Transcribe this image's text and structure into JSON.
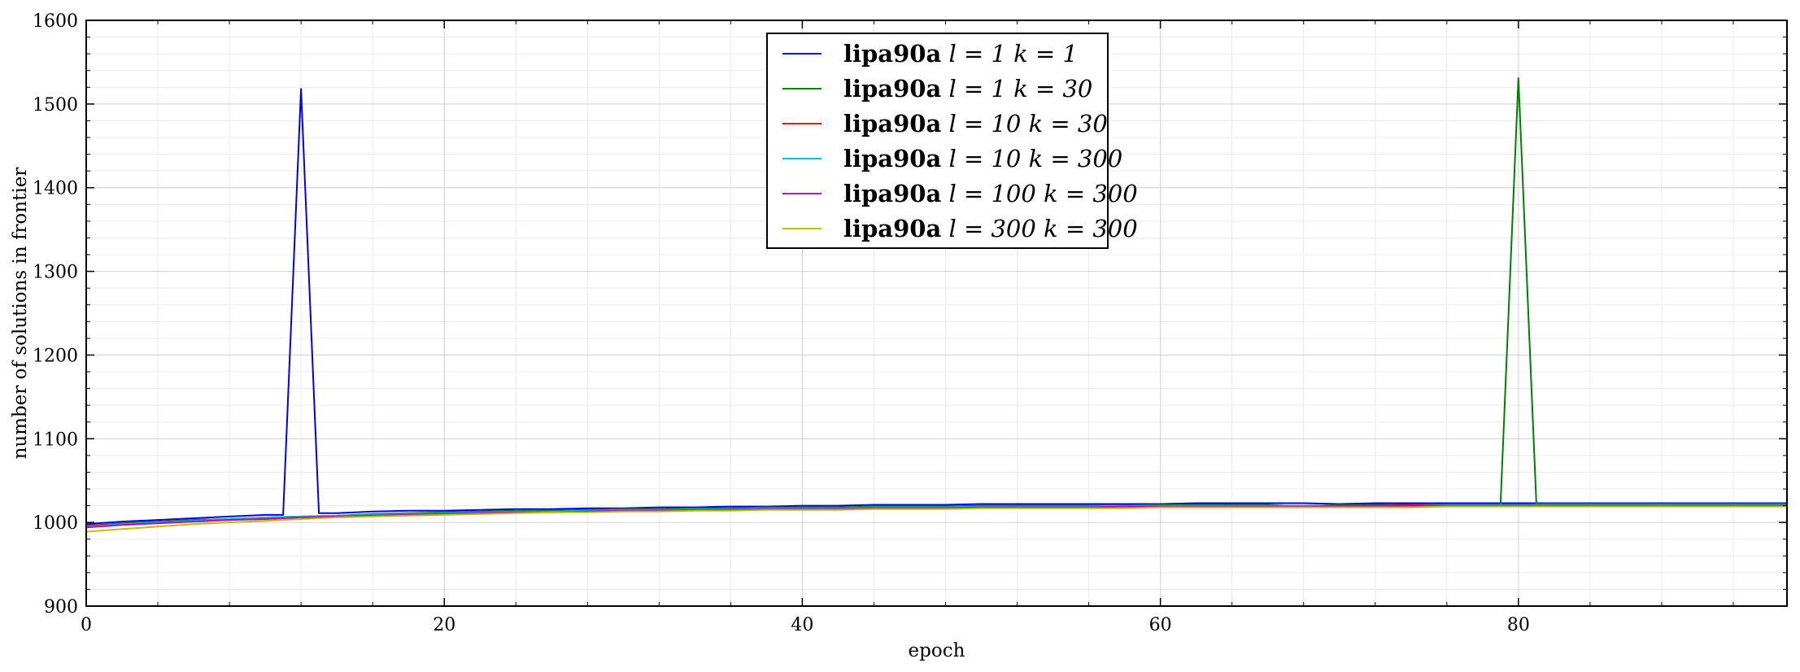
{
  "chart_data": {
    "type": "line",
    "title": "",
    "xlabel": "epoch",
    "ylabel": "number of solutions in frontier",
    "xlim": [
      0,
      95
    ],
    "ylim": [
      900,
      1600
    ],
    "xticks": [
      0,
      20,
      40,
      60,
      80
    ],
    "yticks": [
      900,
      1000,
      1100,
      1200,
      1300,
      1400,
      1500,
      1600
    ],
    "grid": true,
    "minor_grid": true,
    "legend_position": "top-center",
    "series": [
      {
        "name": "lipa90a l = 1 k = 1",
        "label_prefix": "lipa90a",
        "label_math": "l = 1 k = 1",
        "color": "#0000ee",
        "points": [
          [
            0,
            998
          ],
          [
            2,
            1001
          ],
          [
            4,
            1003
          ],
          [
            6,
            1005
          ],
          [
            8,
            1007
          ],
          [
            10,
            1009
          ],
          [
            11,
            1009
          ],
          [
            12,
            1518
          ],
          [
            13,
            1011
          ],
          [
            14,
            1011
          ],
          [
            16,
            1013
          ],
          [
            18,
            1014
          ],
          [
            20,
            1014
          ],
          [
            22,
            1015
          ],
          [
            24,
            1016
          ],
          [
            26,
            1016
          ],
          [
            28,
            1017
          ],
          [
            30,
            1017
          ],
          [
            32,
            1018
          ],
          [
            34,
            1018
          ],
          [
            36,
            1019
          ],
          [
            38,
            1019
          ],
          [
            40,
            1020
          ],
          [
            42,
            1020
          ],
          [
            44,
            1021
          ],
          [
            46,
            1021
          ],
          [
            48,
            1021
          ],
          [
            50,
            1022
          ],
          [
            52,
            1022
          ],
          [
            54,
            1022
          ],
          [
            56,
            1022
          ],
          [
            58,
            1022
          ],
          [
            60,
            1022
          ],
          [
            62,
            1023
          ],
          [
            64,
            1023
          ],
          [
            66,
            1023
          ],
          [
            68,
            1023
          ],
          [
            70,
            1022
          ],
          [
            72,
            1023
          ],
          [
            74,
            1023
          ],
          [
            76,
            1023
          ],
          [
            78,
            1023
          ],
          [
            80,
            1023
          ],
          [
            82,
            1023
          ],
          [
            84,
            1023
          ],
          [
            86,
            1023
          ],
          [
            88,
            1023
          ],
          [
            90,
            1023
          ],
          [
            92,
            1023
          ],
          [
            95,
            1023
          ]
        ]
      },
      {
        "name": "lipa90a l = 1 k = 30",
        "label_prefix": "lipa90a",
        "label_math": "l = 1 k = 30",
        "color": "#008000",
        "points": [
          [
            0,
            996
          ],
          [
            2,
            999
          ],
          [
            4,
            1001
          ],
          [
            6,
            1003
          ],
          [
            8,
            1004
          ],
          [
            10,
            1006
          ],
          [
            12,
            1007
          ],
          [
            14,
            1008
          ],
          [
            16,
            1010
          ],
          [
            18,
            1011
          ],
          [
            20,
            1012
          ],
          [
            22,
            1013
          ],
          [
            24,
            1014
          ],
          [
            26,
            1014
          ],
          [
            28,
            1015
          ],
          [
            30,
            1016
          ],
          [
            32,
            1016
          ],
          [
            34,
            1017
          ],
          [
            36,
            1017
          ],
          [
            38,
            1018
          ],
          [
            40,
            1018
          ],
          [
            42,
            1018
          ],
          [
            44,
            1019
          ],
          [
            46,
            1019
          ],
          [
            48,
            1019
          ],
          [
            50,
            1020
          ],
          [
            52,
            1020
          ],
          [
            54,
            1020
          ],
          [
            56,
            1020
          ],
          [
            58,
            1020
          ],
          [
            60,
            1021
          ],
          [
            62,
            1021
          ],
          [
            64,
            1021
          ],
          [
            66,
            1021
          ],
          [
            68,
            1019
          ],
          [
            70,
            1021
          ],
          [
            72,
            1021
          ],
          [
            74,
            1021
          ],
          [
            76,
            1021
          ],
          [
            78,
            1021
          ],
          [
            79,
            1021
          ],
          [
            80,
            1531
          ],
          [
            81,
            1022
          ],
          [
            82,
            1022
          ],
          [
            84,
            1022
          ],
          [
            86,
            1022
          ],
          [
            88,
            1022
          ],
          [
            90,
            1022
          ],
          [
            92,
            1022
          ],
          [
            95,
            1022
          ]
        ]
      },
      {
        "name": "lipa90a l = 10 k = 30",
        "label_prefix": "lipa90a",
        "label_math": "l = 10 k = 30",
        "color": "#ff0000",
        "points": [
          [
            0,
            996
          ],
          [
            2,
            998
          ],
          [
            4,
            1000
          ],
          [
            6,
            1002
          ],
          [
            8,
            1003
          ],
          [
            10,
            1005
          ],
          [
            12,
            1006
          ],
          [
            14,
            1007
          ],
          [
            16,
            1008
          ],
          [
            18,
            1009
          ],
          [
            20,
            1010
          ],
          [
            22,
            1011
          ],
          [
            24,
            1012
          ],
          [
            26,
            1013
          ],
          [
            28,
            1013
          ],
          [
            30,
            1014
          ],
          [
            32,
            1015
          ],
          [
            34,
            1015
          ],
          [
            36,
            1016
          ],
          [
            38,
            1016
          ],
          [
            40,
            1016
          ],
          [
            42,
            1017
          ],
          [
            44,
            1017
          ],
          [
            46,
            1017
          ],
          [
            48,
            1018
          ],
          [
            50,
            1018
          ],
          [
            52,
            1018
          ],
          [
            54,
            1018
          ],
          [
            56,
            1019
          ],
          [
            58,
            1019
          ],
          [
            60,
            1019
          ],
          [
            62,
            1019
          ],
          [
            64,
            1020
          ],
          [
            66,
            1020
          ],
          [
            68,
            1020
          ],
          [
            70,
            1020
          ],
          [
            72,
            1020
          ],
          [
            74,
            1021
          ],
          [
            76,
            1021
          ],
          [
            78,
            1021
          ],
          [
            80,
            1021
          ],
          [
            82,
            1021
          ],
          [
            84,
            1021
          ],
          [
            86,
            1021
          ],
          [
            88,
            1021
          ],
          [
            90,
            1021
          ],
          [
            92,
            1021
          ],
          [
            95,
            1021
          ]
        ]
      },
      {
        "name": "lipa90a l = 10 k = 300",
        "label_prefix": "lipa90a",
        "label_math": "l = 10 k = 300",
        "color": "#00bfbf",
        "points": [
          [
            0,
            995
          ],
          [
            2,
            998
          ],
          [
            4,
            1000
          ],
          [
            6,
            1002
          ],
          [
            8,
            1004
          ],
          [
            10,
            1006
          ],
          [
            12,
            1007
          ],
          [
            14,
            1008
          ],
          [
            16,
            1009
          ],
          [
            18,
            1010
          ],
          [
            20,
            1011
          ],
          [
            22,
            1012
          ],
          [
            24,
            1013
          ],
          [
            26,
            1013
          ],
          [
            28,
            1014
          ],
          [
            30,
            1015
          ],
          [
            32,
            1015
          ],
          [
            34,
            1016
          ],
          [
            36,
            1016
          ],
          [
            38,
            1017
          ],
          [
            40,
            1017
          ],
          [
            42,
            1017
          ],
          [
            44,
            1018
          ],
          [
            46,
            1018
          ],
          [
            48,
            1018
          ],
          [
            50,
            1019
          ],
          [
            52,
            1019
          ],
          [
            54,
            1019
          ],
          [
            56,
            1019
          ],
          [
            58,
            1020
          ],
          [
            60,
            1020
          ],
          [
            62,
            1020
          ],
          [
            64,
            1020
          ],
          [
            66,
            1020
          ],
          [
            68,
            1020
          ],
          [
            70,
            1020
          ],
          [
            72,
            1020
          ],
          [
            74,
            1020
          ],
          [
            76,
            1021
          ],
          [
            78,
            1021
          ],
          [
            80,
            1021
          ],
          [
            82,
            1021
          ],
          [
            84,
            1021
          ],
          [
            86,
            1021
          ],
          [
            88,
            1021
          ],
          [
            90,
            1021
          ],
          [
            92,
            1021
          ],
          [
            95,
            1021
          ]
        ]
      },
      {
        "name": "lipa90a l = 100 k = 300",
        "label_prefix": "lipa90a",
        "label_math": "l = 100 k = 300",
        "color": "#bf00bf",
        "points": [
          [
            0,
            994
          ],
          [
            2,
            997
          ],
          [
            4,
            999
          ],
          [
            6,
            1001
          ],
          [
            8,
            1003
          ],
          [
            10,
            1004
          ],
          [
            12,
            1006
          ],
          [
            14,
            1007
          ],
          [
            16,
            1008
          ],
          [
            18,
            1009
          ],
          [
            20,
            1010
          ],
          [
            22,
            1011
          ],
          [
            24,
            1012
          ],
          [
            26,
            1012
          ],
          [
            28,
            1013
          ],
          [
            30,
            1014
          ],
          [
            32,
            1014
          ],
          [
            34,
            1015
          ],
          [
            36,
            1015
          ],
          [
            38,
            1016
          ],
          [
            40,
            1016
          ],
          [
            42,
            1016
          ],
          [
            44,
            1017
          ],
          [
            46,
            1017
          ],
          [
            48,
            1017
          ],
          [
            50,
            1018
          ],
          [
            52,
            1018
          ],
          [
            54,
            1018
          ],
          [
            56,
            1018
          ],
          [
            58,
            1019
          ],
          [
            60,
            1019
          ],
          [
            62,
            1019
          ],
          [
            64,
            1019
          ],
          [
            66,
            1019
          ],
          [
            68,
            1019
          ],
          [
            70,
            1020
          ],
          [
            72,
            1020
          ],
          [
            74,
            1020
          ],
          [
            76,
            1020
          ],
          [
            78,
            1020
          ],
          [
            80,
            1020
          ],
          [
            82,
            1020
          ],
          [
            84,
            1020
          ],
          [
            86,
            1020
          ],
          [
            88,
            1020
          ],
          [
            90,
            1020
          ],
          [
            92,
            1020
          ],
          [
            95,
            1020
          ]
        ]
      },
      {
        "name": "lipa90a l = 300 k = 300",
        "label_prefix": "lipa90a",
        "label_math": "l = 300 k = 300",
        "color": "#bfbf00",
        "points": [
          [
            0,
            989
          ],
          [
            2,
            992
          ],
          [
            4,
            995
          ],
          [
            6,
            998
          ],
          [
            8,
            1000
          ],
          [
            10,
            1002
          ],
          [
            12,
            1004
          ],
          [
            14,
            1006
          ],
          [
            16,
            1007
          ],
          [
            18,
            1008
          ],
          [
            20,
            1009
          ],
          [
            22,
            1010
          ],
          [
            24,
            1011
          ],
          [
            26,
            1012
          ],
          [
            28,
            1012
          ],
          [
            30,
            1013
          ],
          [
            32,
            1013
          ],
          [
            34,
            1014
          ],
          [
            36,
            1014
          ],
          [
            38,
            1015
          ],
          [
            40,
            1015
          ],
          [
            42,
            1015
          ],
          [
            44,
            1016
          ],
          [
            46,
            1016
          ],
          [
            48,
            1016
          ],
          [
            50,
            1017
          ],
          [
            52,
            1017
          ],
          [
            54,
            1017
          ],
          [
            56,
            1017
          ],
          [
            58,
            1017
          ],
          [
            60,
            1018
          ],
          [
            62,
            1018
          ],
          [
            64,
            1018
          ],
          [
            66,
            1018
          ],
          [
            68,
            1018
          ],
          [
            70,
            1018
          ],
          [
            72,
            1018
          ],
          [
            74,
            1018
          ],
          [
            76,
            1019
          ],
          [
            78,
            1019
          ],
          [
            80,
            1019
          ],
          [
            82,
            1019
          ],
          [
            84,
            1019
          ],
          [
            86,
            1019
          ],
          [
            88,
            1019
          ],
          [
            90,
            1019
          ],
          [
            92,
            1019
          ],
          [
            95,
            1019
          ]
        ]
      }
    ]
  }
}
